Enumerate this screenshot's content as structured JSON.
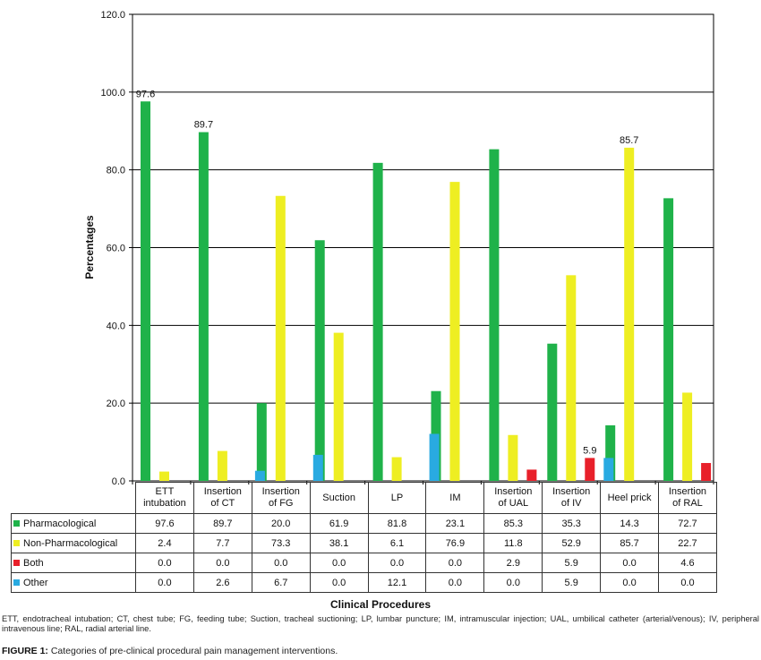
{
  "chart_data": {
    "type": "bar",
    "xlabel": "Clinical Procedures",
    "ylabel": "Percentages",
    "ylim": [
      0,
      120
    ],
    "yticks": [
      "0.0",
      "20.0",
      "40.0",
      "60.0",
      "80.0",
      "100.0",
      "120.0"
    ],
    "ytick_values": [
      0,
      20,
      40,
      60,
      80,
      100,
      120
    ],
    "categories": [
      [
        "ETT",
        "intubation"
      ],
      [
        "Insertion",
        "of CT"
      ],
      [
        "Insertion",
        "of FG"
      ],
      [
        "Suction"
      ],
      [
        "LP"
      ],
      [
        "IM"
      ],
      [
        "Insertion",
        "of UAL"
      ],
      [
        "Insertion",
        "of IV"
      ],
      [
        "Heel prick"
      ],
      [
        "Insertion",
        "of RAL"
      ]
    ],
    "series": [
      {
        "name": "Pharmacological",
        "color": "#1fb24a",
        "values": [
          97.6,
          89.7,
          20.0,
          61.9,
          81.8,
          23.1,
          85.3,
          35.3,
          14.3,
          72.7
        ],
        "display": [
          "97.6",
          "89.7",
          "20.0",
          "61.9",
          "81.8",
          "23.1",
          "85.3",
          "35.3",
          "14.3",
          "72.7"
        ]
      },
      {
        "name": "Non-Pharmacological",
        "color": "#eeee22",
        "values": [
          2.4,
          7.7,
          73.3,
          38.1,
          6.1,
          76.9,
          11.8,
          52.9,
          85.7,
          22.7
        ],
        "display": [
          "2.4",
          "7.7",
          "73.3",
          "38.1",
          "6.1",
          "76.9",
          "11.8",
          "52.9",
          "85.7",
          "22.7"
        ]
      },
      {
        "name": "Both",
        "color": "#e8202a",
        "values": [
          0.0,
          0.0,
          0.0,
          0.0,
          0.0,
          0.0,
          2.9,
          5.9,
          0.0,
          4.6
        ],
        "display": [
          "0.0",
          "0.0",
          "0.0",
          "0.0",
          "0.0",
          "0.0",
          "2.9",
          "5.9",
          "0.0",
          "4.6"
        ]
      },
      {
        "name": "Other",
        "color": "#29aae1",
        "values": [
          0.0,
          2.6,
          6.7,
          0.0,
          12.1,
          0.0,
          0.0,
          5.9,
          0.0,
          0.0
        ],
        "display": [
          "0.0",
          "2.6",
          "6.7",
          "0.0",
          "12.1",
          "0.0",
          "0.0",
          "5.9",
          "0.0",
          "0.0"
        ]
      }
    ],
    "annotations": [
      {
        "series": 0,
        "category": 0,
        "text": "97.6"
      },
      {
        "series": 0,
        "category": 1,
        "text": "89.7"
      },
      {
        "series": 1,
        "category": 8,
        "text": "85.7"
      },
      {
        "series": 2,
        "category": 7,
        "text": "5.9"
      }
    ]
  },
  "footnote": "ETT, endotracheal intubation; CT, chest tube; FG, feeding tube; Suction, tracheal suctioning; LP, lumbar puncture; IM, intramuscular injection; UAL, umbilical catheter (arterial/venous); IV, peripheral intravenous line; RAL, radial arterial line.",
  "caption": {
    "label": "FIGURE 1:",
    "text": " Categories of pre-clinical procedural pain management interventions."
  }
}
